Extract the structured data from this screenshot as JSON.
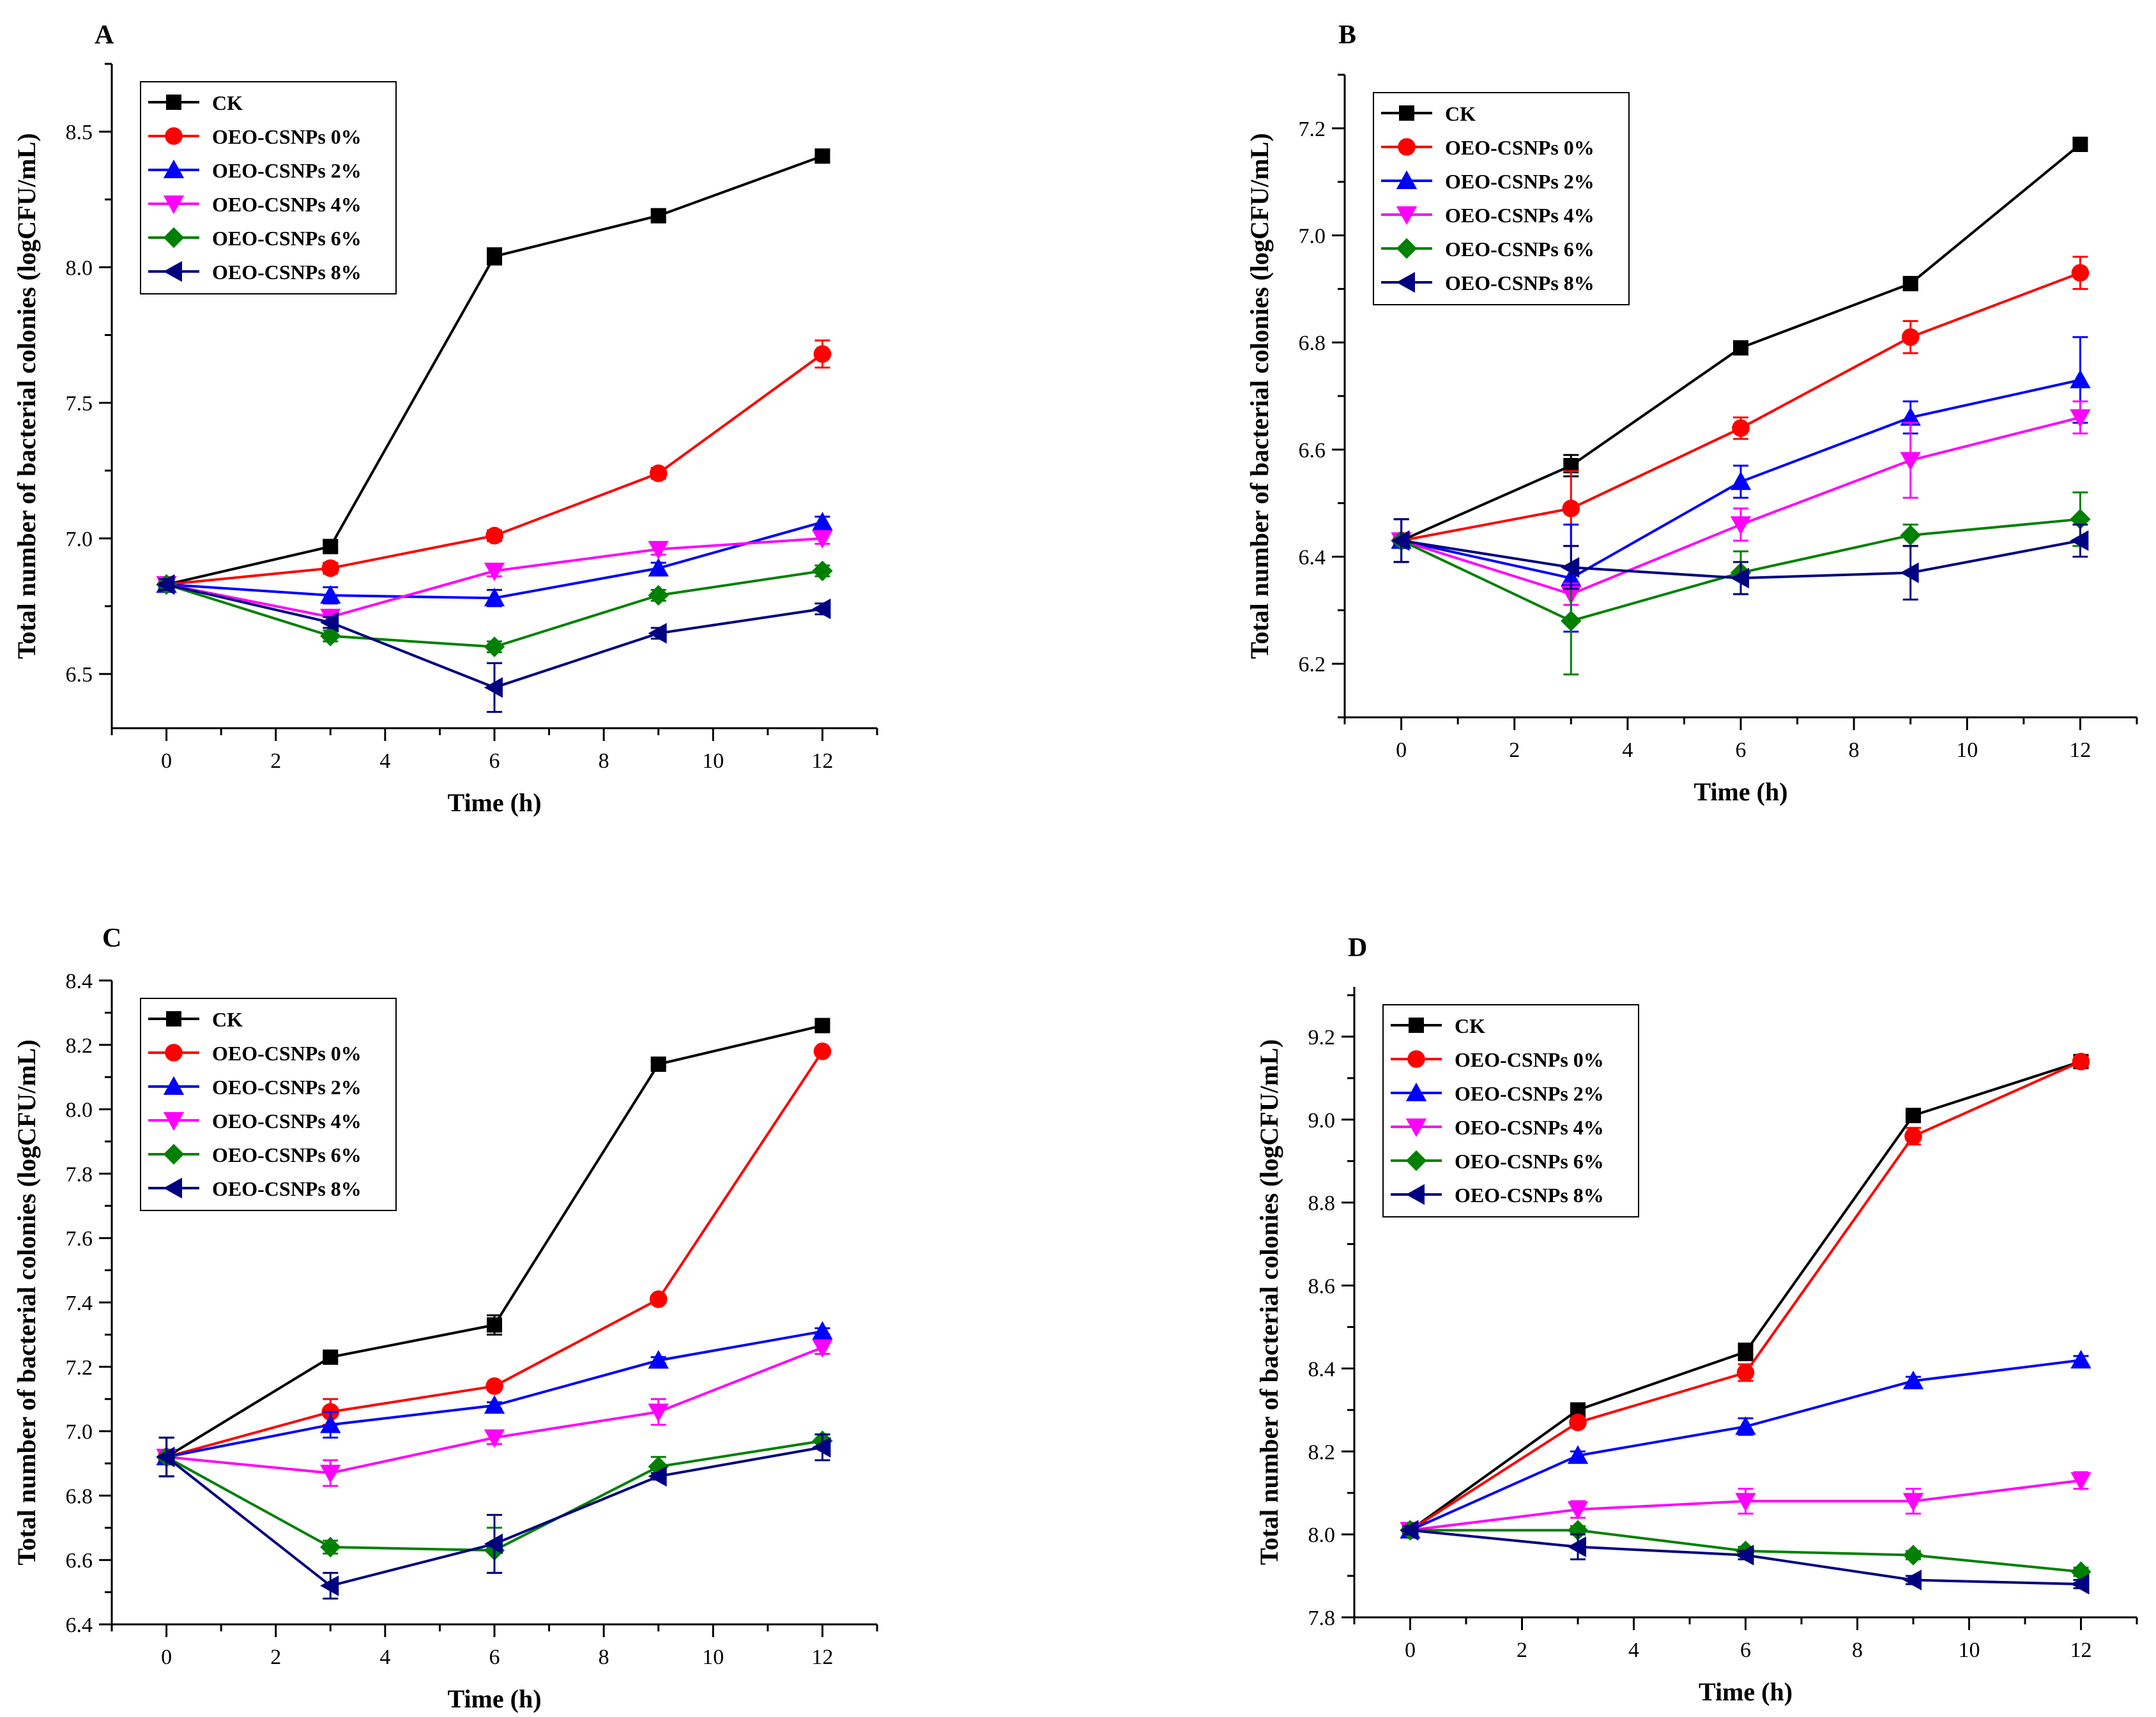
{
  "figure": {
    "colors": {
      "CK": "#000000",
      "OEO-CSNPs 0%": "#ff0000",
      "OEO-CSNPs 2%": "#0000ff",
      "OEO-CSNPs 4%": "#ff00ff",
      "OEO-CSNPs 6%": "#008000",
      "OEO-CSNPs 8%": "#000080"
    },
    "markers": {
      "CK": "square",
      "OEO-CSNPs 0%": "circle",
      "OEO-CSNPs 2%": "triangle-up",
      "OEO-CSNPs 4%": "triangle-down",
      "OEO-CSNPs 6%": "diamond",
      "OEO-CSNPs 8%": "triangle-left"
    }
  },
  "chart_data": [
    {
      "panel": "A",
      "type": "line",
      "xlabel": "Time (h)",
      "ylabel": "Total number of bacterial colonies (logCFU/mL)",
      "xlim": [
        -1,
        13
      ],
      "ylim": [
        6.3,
        8.75
      ],
      "xticks": [
        "0",
        "2",
        "4",
        "6",
        "8",
        "10",
        "12"
      ],
      "yticks": [
        "6.5",
        "7.0",
        "7.5",
        "8.0",
        "8.5"
      ],
      "legend": "top-left",
      "x": [
        0,
        3,
        6,
        9,
        12
      ],
      "series": [
        {
          "name": "CK",
          "values": [
            6.83,
            6.97,
            8.04,
            8.19,
            8.41
          ],
          "errors": [
            0.02,
            0.02,
            0.03,
            0.02,
            0.02
          ]
        },
        {
          "name": "OEO-CSNPs 0%",
          "values": [
            6.83,
            6.89,
            7.01,
            7.24,
            7.68
          ],
          "errors": [
            0.02,
            0.02,
            0.02,
            0.02,
            0.05
          ]
        },
        {
          "name": "OEO-CSNPs 2%",
          "values": [
            6.83,
            6.79,
            6.78,
            6.89,
            7.06
          ],
          "errors": [
            0.02,
            0.03,
            0.03,
            0.02,
            0.02
          ]
        },
        {
          "name": "OEO-CSNPs 4%",
          "values": [
            6.83,
            6.71,
            6.88,
            6.96,
            7.0
          ],
          "errors": [
            0.02,
            0.02,
            0.02,
            0.02,
            0.02
          ]
        },
        {
          "name": "OEO-CSNPs 6%",
          "values": [
            6.83,
            6.64,
            6.6,
            6.79,
            6.88
          ],
          "errors": [
            0.02,
            0.02,
            0.02,
            0.02,
            0.02
          ]
        },
        {
          "name": "OEO-CSNPs 8%",
          "values": [
            6.83,
            6.69,
            6.45,
            6.65,
            6.74
          ],
          "errors": [
            0.02,
            0.02,
            0.09,
            0.02,
            0.02
          ]
        }
      ]
    },
    {
      "panel": "B",
      "type": "line",
      "xlabel": "Time (h)",
      "ylabel": "Total number of bacterial colonies (logCFU/mL)",
      "xlim": [
        -1,
        13
      ],
      "ylim": [
        6.1,
        7.3
      ],
      "xticks": [
        "0",
        "2",
        "4",
        "6",
        "8",
        "10",
        "12"
      ],
      "yticks": [
        "6.2",
        "6.4",
        "6.6",
        "6.8",
        "7.0",
        "7.2"
      ],
      "legend": "top-left",
      "x": [
        0,
        3,
        6,
        9,
        12
      ],
      "series": [
        {
          "name": "CK",
          "values": [
            6.43,
            6.57,
            6.79,
            6.91,
            7.17
          ],
          "errors": [
            0.04,
            0.02,
            0.01,
            0.01,
            0.01
          ]
        },
        {
          "name": "OEO-CSNPs 0%",
          "values": [
            6.43,
            6.49,
            6.64,
            6.81,
            6.93
          ],
          "errors": [
            0.04,
            0.07,
            0.02,
            0.03,
            0.03
          ]
        },
        {
          "name": "OEO-CSNPs 2%",
          "values": [
            6.43,
            6.36,
            6.54,
            6.66,
            6.73
          ],
          "errors": [
            0.04,
            0.1,
            0.03,
            0.03,
            0.08
          ]
        },
        {
          "name": "OEO-CSNPs 4%",
          "values": [
            6.43,
            6.33,
            6.46,
            6.58,
            6.66
          ],
          "errors": [
            0.04,
            0.02,
            0.03,
            0.07,
            0.03
          ]
        },
        {
          "name": "OEO-CSNPs 6%",
          "values": [
            6.43,
            6.28,
            6.37,
            6.44,
            6.47
          ],
          "errors": [
            0.04,
            0.1,
            0.04,
            0.02,
            0.05
          ]
        },
        {
          "name": "OEO-CSNPs 8%",
          "values": [
            6.43,
            6.38,
            6.36,
            6.37,
            6.43
          ],
          "errors": [
            0.04,
            0.04,
            0.03,
            0.05,
            0.03
          ]
        }
      ]
    },
    {
      "panel": "C",
      "type": "line",
      "xlabel": "Time (h)",
      "ylabel": "Total number of bacterial colonies (logCFU/mL)",
      "xlim": [
        -1,
        13
      ],
      "ylim": [
        6.4,
        8.4
      ],
      "xticks": [
        "0",
        "2",
        "4",
        "6",
        "8",
        "10",
        "12"
      ],
      "yticks": [
        "6.4",
        "6.6",
        "6.8",
        "7.0",
        "7.2",
        "7.4",
        "7.6",
        "7.8",
        "8.0",
        "8.2",
        "8.4"
      ],
      "legend": "top-left",
      "x": [
        0,
        3,
        6,
        9,
        12
      ],
      "series": [
        {
          "name": "CK",
          "values": [
            6.92,
            7.23,
            7.33,
            8.14,
            8.26
          ],
          "errors": [
            0.06,
            0.01,
            0.03,
            0.01,
            0.01
          ]
        },
        {
          "name": "OEO-CSNPs 0%",
          "values": [
            6.92,
            7.06,
            7.14,
            7.41,
            8.18
          ],
          "errors": [
            0.06,
            0.04,
            0.01,
            0.01,
            0.01
          ]
        },
        {
          "name": "OEO-CSNPs 2%",
          "values": [
            6.92,
            7.02,
            7.08,
            7.22,
            7.31
          ],
          "errors": [
            0.06,
            0.04,
            0.01,
            0.01,
            0.01
          ]
        },
        {
          "name": "OEO-CSNPs 4%",
          "values": [
            6.92,
            6.87,
            6.98,
            7.06,
            7.26
          ],
          "errors": [
            0.06,
            0.04,
            0.02,
            0.04,
            0.02
          ]
        },
        {
          "name": "OEO-CSNPs 6%",
          "values": [
            6.92,
            6.64,
            6.63,
            6.89,
            6.97
          ],
          "errors": [
            0.06,
            0.02,
            0.07,
            0.03,
            0.02
          ]
        },
        {
          "name": "OEO-CSNPs 8%",
          "values": [
            6.92,
            6.52,
            6.65,
            6.86,
            6.95
          ],
          "errors": [
            0.06,
            0.04,
            0.09,
            0.01,
            0.04
          ]
        }
      ]
    },
    {
      "panel": "D",
      "type": "line",
      "xlabel": "Time (h)",
      "ylabel": "Total number of bacterial colonies (logCFU/mL)",
      "xlim": [
        -1,
        13
      ],
      "ylim": [
        7.8,
        9.32
      ],
      "xticks": [
        "0",
        "2",
        "4",
        "6",
        "8",
        "10",
        "12"
      ],
      "yticks": [
        "7.8",
        "8.0",
        "8.2",
        "8.4",
        "8.6",
        "8.8",
        "9.0",
        "9.2"
      ],
      "legend": "top-left",
      "x": [
        0,
        3,
        6,
        9,
        12
      ],
      "series": [
        {
          "name": "CK",
          "values": [
            8.01,
            8.3,
            8.44,
            9.01,
            9.14
          ],
          "errors": [
            0.01,
            0.01,
            0.02,
            0.01,
            0.01
          ]
        },
        {
          "name": "OEO-CSNPs 0%",
          "values": [
            8.01,
            8.27,
            8.39,
            8.96,
            9.14
          ],
          "errors": [
            0.01,
            0.01,
            0.02,
            0.02,
            0.01
          ]
        },
        {
          "name": "OEO-CSNPs 2%",
          "values": [
            8.01,
            8.19,
            8.26,
            8.37,
            8.42
          ],
          "errors": [
            0.01,
            0.01,
            0.02,
            0.01,
            0.01
          ]
        },
        {
          "name": "OEO-CSNPs 4%",
          "values": [
            8.01,
            8.06,
            8.08,
            8.08,
            8.13
          ],
          "errors": [
            0.01,
            0.02,
            0.03,
            0.03,
            0.02
          ]
        },
        {
          "name": "OEO-CSNPs 6%",
          "values": [
            8.01,
            8.01,
            7.96,
            7.95,
            7.91
          ],
          "errors": [
            0.01,
            0.01,
            0.01,
            0.01,
            0.01
          ]
        },
        {
          "name": "OEO-CSNPs 8%",
          "values": [
            8.01,
            7.97,
            7.95,
            7.89,
            7.88
          ],
          "errors": [
            0.01,
            0.03,
            0.01,
            0.01,
            0.01
          ]
        }
      ]
    }
  ]
}
